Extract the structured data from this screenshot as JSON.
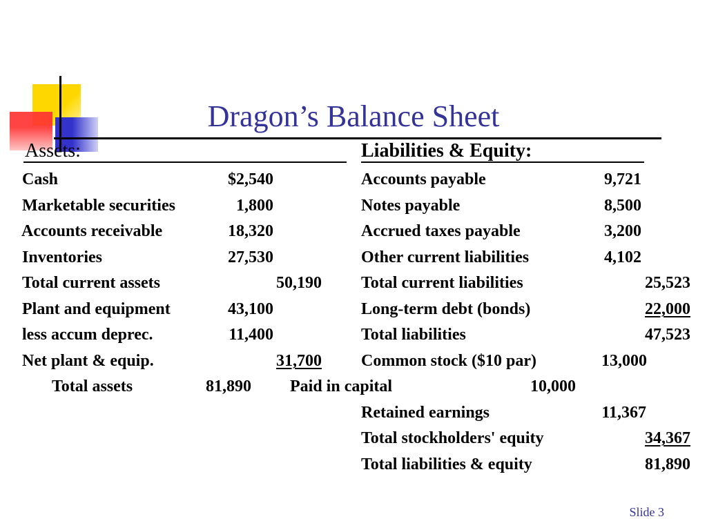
{
  "slide": {
    "title": "Dragon’s Balance Sheet",
    "footer": "Slide 3",
    "colors": {
      "title": "#333399",
      "accent_yellow": "#ffd700",
      "accent_red": "#ff3333",
      "accent_blue": "#3333cc"
    }
  },
  "assets": {
    "heading": "Assets:",
    "rows": [
      {
        "label": "Cash",
        "value": "$2,540"
      },
      {
        "label": "Marketable securities",
        "value": "1,800"
      },
      {
        "label": "Accounts receivable",
        "value": "18,320"
      },
      {
        "label": "Inventories",
        "value": "27,530"
      },
      {
        "label": "Total current assets",
        "value": "50,190"
      },
      {
        "label": "Plant and equipment",
        "value": "43,100"
      },
      {
        "label": "less accum deprec.",
        "value": "11,400"
      },
      {
        "label": "Net plant & equip.",
        "value": "31,700"
      },
      {
        "label": "Total assets",
        "value": "81,890"
      }
    ]
  },
  "liabilities": {
    "heading": "Liabilities & Equity:",
    "rows": [
      {
        "label": "Accounts payable",
        "value": "9,721"
      },
      {
        "label": "Notes payable",
        "value": "8,500"
      },
      {
        "label": "Accrued taxes payable",
        "value": "3,200"
      },
      {
        "label": "Other current liabilities",
        "value": "4,102"
      },
      {
        "label": "Total current liabilities",
        "value": "25,523"
      },
      {
        "label": "Long-term debt (bonds)",
        "value": "22,000"
      },
      {
        "label": "Total liabilities",
        "value": "47,523"
      },
      {
        "label": "Common stock ($10 par)",
        "value": "13,000"
      },
      {
        "label": "Paid in capital",
        "value": "10,000"
      },
      {
        "label": "Retained earnings",
        "value": "11,367"
      },
      {
        "label": "Total stockholders' equity",
        "value": "34,367"
      },
      {
        "label": "Total liabilities & equity",
        "value": "81,890"
      }
    ]
  }
}
